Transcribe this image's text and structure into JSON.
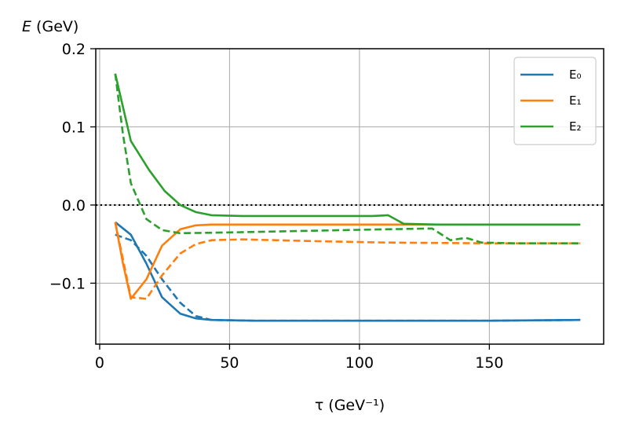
{
  "chart_data": {
    "type": "line",
    "xlabel": "τ (GeV⁻¹)",
    "ylabel": "E (GeV)",
    "xlim": [
      -1.5,
      194
    ],
    "ylim": [
      -0.178,
      0.2
    ],
    "x_ticks": [
      0,
      50,
      100,
      150
    ],
    "x_tick_labels": [
      "0",
      "50",
      "100",
      "150"
    ],
    "y_ticks": [
      -0.1,
      0.0,
      0.1,
      0.2
    ],
    "y_tick_labels": [
      "−0.1",
      "0.0",
      "0.1",
      "0.2"
    ],
    "grid": true,
    "legend_position": "top-right",
    "reference_line": {
      "y": 0.0,
      "style": "dotted",
      "color": "#000000"
    },
    "series": [
      {
        "name": "E₀",
        "color": "#1f77b4",
        "style": "solid",
        "points": [
          [
            6,
            -0.022
          ],
          [
            12,
            -0.038
          ],
          [
            18,
            -0.075
          ],
          [
            24,
            -0.118
          ],
          [
            31,
            -0.139
          ],
          [
            37,
            -0.145
          ],
          [
            43,
            -0.147
          ],
          [
            60,
            -0.148
          ],
          [
            100,
            -0.148
          ],
          [
            150,
            -0.148
          ],
          [
            185,
            -0.147
          ]
        ]
      },
      {
        "name": "E₀",
        "color": "#1f77b4",
        "style": "dashed",
        "points": [
          [
            6,
            -0.038
          ],
          [
            12,
            -0.045
          ],
          [
            18,
            -0.065
          ],
          [
            24,
            -0.095
          ],
          [
            31,
            -0.125
          ],
          [
            37,
            -0.142
          ],
          [
            43,
            -0.147
          ],
          [
            60,
            -0.148
          ],
          [
            100,
            -0.148
          ],
          [
            150,
            -0.148
          ],
          [
            185,
            -0.147
          ]
        ]
      },
      {
        "name": "E₁",
        "color": "#ff7f0e",
        "style": "solid",
        "points": [
          [
            6,
            -0.022
          ],
          [
            9,
            -0.075
          ],
          [
            12,
            -0.12
          ],
          [
            18,
            -0.095
          ],
          [
            24,
            -0.052
          ],
          [
            31,
            -0.031
          ],
          [
            37,
            -0.026
          ],
          [
            43,
            -0.025
          ],
          [
            60,
            -0.025
          ],
          [
            100,
            -0.025
          ],
          [
            150,
            -0.025
          ],
          [
            185,
            -0.025
          ]
        ]
      },
      {
        "name": "E₁",
        "color": "#ff7f0e",
        "style": "dashed",
        "points": [
          [
            6,
            -0.022
          ],
          [
            12,
            -0.118
          ],
          [
            18,
            -0.12
          ],
          [
            24,
            -0.09
          ],
          [
            31,
            -0.062
          ],
          [
            37,
            -0.05
          ],
          [
            43,
            -0.045
          ],
          [
            55,
            -0.044
          ],
          [
            80,
            -0.046
          ],
          [
            110,
            -0.048
          ],
          [
            150,
            -0.049
          ],
          [
            185,
            -0.049
          ]
        ]
      },
      {
        "name": "E₂",
        "color": "#2ca02c",
        "style": "solid",
        "points": [
          [
            6,
            0.168
          ],
          [
            12,
            0.082
          ],
          [
            19,
            0.045
          ],
          [
            25,
            0.018
          ],
          [
            31,
            0.0
          ],
          [
            37,
            -0.009
          ],
          [
            43,
            -0.013
          ],
          [
            55,
            -0.014
          ],
          [
            80,
            -0.014
          ],
          [
            105,
            -0.014
          ],
          [
            111,
            -0.013
          ],
          [
            117,
            -0.024
          ],
          [
            130,
            -0.025
          ],
          [
            150,
            -0.025
          ],
          [
            185,
            -0.025
          ]
        ]
      },
      {
        "name": "E₂",
        "color": "#2ca02c",
        "style": "dashed",
        "points": [
          [
            6,
            0.168
          ],
          [
            9,
            0.09
          ],
          [
            12,
            0.028
          ],
          [
            18,
            -0.018
          ],
          [
            24,
            -0.032
          ],
          [
            31,
            -0.036
          ],
          [
            50,
            -0.035
          ],
          [
            80,
            -0.033
          ],
          [
            110,
            -0.031
          ],
          [
            128,
            -0.03
          ],
          [
            135,
            -0.045
          ],
          [
            141,
            -0.042
          ],
          [
            147,
            -0.048
          ],
          [
            160,
            -0.049
          ],
          [
            185,
            -0.049
          ]
        ]
      }
    ],
    "legend": [
      {
        "label": "E₀",
        "color": "#1f77b4"
      },
      {
        "label": "E₁",
        "color": "#ff7f0e"
      },
      {
        "label": "E₂",
        "color": "#2ca02c"
      }
    ]
  }
}
